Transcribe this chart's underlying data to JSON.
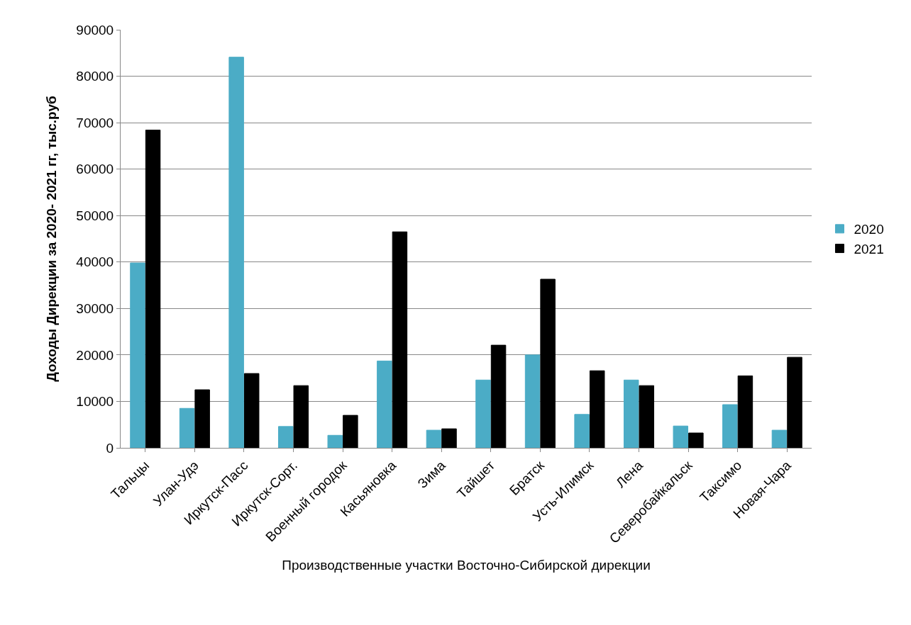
{
  "chart_data": {
    "type": "bar",
    "xlabel": "Производственные участки Восточно-Сибирской дирекции",
    "ylabel": "Доходы Дирекции за 2020- 2021 гг, тыс.руб",
    "categories": [
      "Тальцы",
      "Улан-Удэ",
      "Иркутск-Пасс",
      "Иркутск-Сорт.",
      "Военный городок",
      "Касьяновка",
      "Зима",
      "Тайшет",
      "Братск",
      "Усть-Илимск",
      "Лена",
      "Северобайкальск",
      "Таксимо",
      "Новая-Чара"
    ],
    "series": [
      {
        "name": "2020",
        "color": "#4bacc6",
        "values": [
          39800,
          8500,
          84100,
          4600,
          2700,
          18700,
          3800,
          14600,
          20000,
          7200,
          14600,
          4700,
          9300,
          3800
        ]
      },
      {
        "name": "2021",
        "color": "#000000",
        "values": [
          68400,
          12500,
          16000,
          13400,
          7000,
          46500,
          4100,
          22100,
          36300,
          16600,
          13400,
          3200,
          15500,
          19500
        ]
      }
    ],
    "ylim": [
      0,
      90000
    ],
    "yticks": [
      0,
      10000,
      20000,
      30000,
      40000,
      50000,
      60000,
      70000,
      80000,
      90000
    ],
    "grid": "y",
    "legend": "right"
  }
}
